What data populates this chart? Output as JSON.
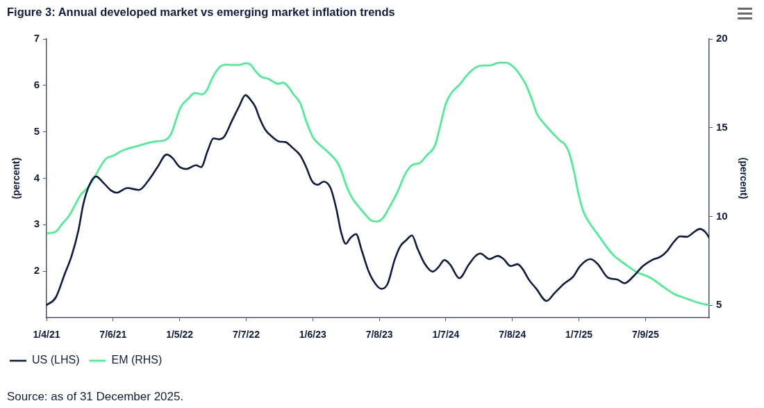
{
  "chart_data": {
    "type": "line",
    "title": "Figure 3: Annual developed market vs emerging market inflation trends",
    "ylabel": "(percent)",
    "y2label": "(percent)",
    "annotations": [
      "Source: as of 31 December 2025."
    ],
    "legend": "bottom left",
    "xlim": [
      "2021-01-04",
      "2025-12-31"
    ],
    "xticks": [
      {
        "value": "2021-01-04",
        "label": "1/4/21"
      },
      {
        "value": "2021-07-06",
        "label": "7/6/21"
      },
      {
        "value": "2022-01-05",
        "label": "1/5/22"
      },
      {
        "value": "2022-07-07",
        "label": "7/7/22"
      },
      {
        "value": "2023-01-06",
        "label": "1/6/23"
      },
      {
        "value": "2023-07-08",
        "label": "7/8/23"
      },
      {
        "value": "2024-01-07",
        "label": "1/7/24"
      },
      {
        "value": "2024-07-08",
        "label": "7/8/24"
      },
      {
        "value": "2025-01-07",
        "label": "1/7/25"
      },
      {
        "value": "2025-07-09",
        "label": "7/9/25"
      }
    ],
    "ylim": [
      1,
      7
    ],
    "yticks": [
      2,
      3,
      4,
      5,
      6,
      7
    ],
    "y2lim": [
      4.3,
      20
    ],
    "y2ticks": [
      5,
      10,
      15,
      20
    ],
    "series": [
      {
        "name": "US (LHS)",
        "color": "#0d1b3e",
        "x": [
          "2021-01-04",
          "2021-01-29",
          "2021-02-23",
          "2021-03-14",
          "2021-04-02",
          "2021-04-15",
          "2021-05-01",
          "2021-05-20",
          "2021-06-11",
          "2021-06-30",
          "2021-07-16",
          "2021-08-14",
          "2021-09-15",
          "2021-10-10",
          "2021-11-05",
          "2021-11-30",
          "2021-12-16",
          "2022-01-04",
          "2022-01-24",
          "2022-02-19",
          "2022-03-05",
          "2022-03-23",
          "2022-04-08",
          "2022-04-24",
          "2022-05-07",
          "2022-05-29",
          "2022-06-17",
          "2022-07-05",
          "2022-07-19",
          "2022-08-01",
          "2022-08-13",
          "2022-08-29",
          "2022-09-14",
          "2022-10-07",
          "2022-10-23",
          "2022-11-11",
          "2022-12-03",
          "2022-12-19",
          "2023-01-04",
          "2023-01-20",
          "2023-02-05",
          "2023-02-24",
          "2023-03-12",
          "2023-03-25",
          "2023-04-07",
          "2023-04-19",
          "2023-05-05",
          "2023-05-21",
          "2023-06-09",
          "2023-06-29",
          "2023-07-14",
          "2023-07-31",
          "2023-08-19",
          "2023-09-04",
          "2023-09-19",
          "2023-10-06",
          "2023-10-21",
          "2023-11-10",
          "2023-12-02",
          "2023-12-18",
          "2024-01-03",
          "2024-01-19",
          "2024-02-13",
          "2024-03-10",
          "2024-03-29",
          "2024-04-11",
          "2024-05-06",
          "2024-05-29",
          "2024-06-14",
          "2024-07-03",
          "2024-07-22",
          "2024-08-04",
          "2024-08-23",
          "2024-09-11",
          "2024-10-10",
          "2024-11-01",
          "2024-11-27",
          "2024-12-22",
          "2025-01-10",
          "2025-02-08",
          "2025-02-27",
          "2025-03-28",
          "2025-04-23",
          "2025-05-12",
          "2025-06-06",
          "2025-07-02",
          "2025-07-27",
          "2025-08-19",
          "2025-09-07",
          "2025-09-26",
          "2025-10-12",
          "2025-10-31",
          "2025-11-19",
          "2025-12-05",
          "2025-12-21",
          "2025-12-31"
        ],
        "values": [
          1.27,
          1.43,
          1.94,
          2.33,
          2.89,
          3.44,
          3.84,
          4.04,
          3.89,
          3.74,
          3.69,
          3.79,
          3.75,
          3.94,
          4.24,
          4.51,
          4.44,
          4.25,
          4.2,
          4.28,
          4.24,
          4.59,
          4.86,
          4.84,
          4.89,
          5.24,
          5.54,
          5.79,
          5.69,
          5.54,
          5.29,
          5.04,
          4.91,
          4.79,
          4.78,
          4.66,
          4.49,
          4.24,
          3.94,
          3.86,
          3.93,
          3.79,
          3.34,
          2.84,
          2.59,
          2.71,
          2.8,
          2.44,
          1.99,
          1.71,
          1.62,
          1.73,
          2.24,
          2.54,
          2.66,
          2.77,
          2.49,
          2.16,
          1.99,
          2.09,
          2.24,
          2.14,
          1.85,
          2.14,
          2.33,
          2.38,
          2.26,
          2.33,
          2.26,
          2.11,
          2.15,
          2.06,
          1.81,
          1.63,
          1.36,
          1.53,
          1.73,
          1.88,
          2.11,
          2.26,
          2.16,
          1.86,
          1.82,
          1.74,
          1.89,
          2.11,
          2.24,
          2.31,
          2.44,
          2.64,
          2.75,
          2.74,
          2.84,
          2.91,
          2.84,
          2.72
        ]
      },
      {
        "name": "EM (RHS)",
        "color": "#3ff28e",
        "axis": "y2",
        "x": [
          "2021-01-04",
          "2021-01-29",
          "2021-02-16",
          "2021-03-07",
          "2021-03-23",
          "2021-04-08",
          "2021-04-27",
          "2021-05-16",
          "2021-06-01",
          "2021-06-17",
          "2021-07-06",
          "2021-08-02",
          "2021-09-15",
          "2021-10-30",
          "2021-11-25",
          "2021-12-14",
          "2021-12-27",
          "2022-01-08",
          "2022-01-28",
          "2022-02-16",
          "2022-03-07",
          "2022-03-20",
          "2022-04-05",
          "2022-04-24",
          "2022-05-13",
          "2022-05-29",
          "2022-06-17",
          "2022-07-06",
          "2022-07-19",
          "2022-08-01",
          "2022-08-17",
          "2022-09-05",
          "2022-10-04",
          "2022-10-16",
          "2022-10-29",
          "2022-11-14",
          "2022-12-03",
          "2022-12-19",
          "2023-01-07",
          "2023-01-23",
          "2023-02-15",
          "2023-03-12",
          "2023-03-25",
          "2023-04-07",
          "2023-04-23",
          "2023-05-12",
          "2023-05-31",
          "2023-06-16",
          "2023-07-02",
          "2023-07-18",
          "2023-08-06",
          "2023-08-28",
          "2023-09-16",
          "2023-10-06",
          "2023-10-28",
          "2023-11-16",
          "2023-12-08",
          "2023-12-21",
          "2024-01-06",
          "2024-01-22",
          "2024-02-13",
          "2024-03-07",
          "2024-03-29",
          "2024-04-17",
          "2024-05-06",
          "2024-06-01",
          "2024-06-20",
          "2024-07-09",
          "2024-07-28",
          "2024-08-13",
          "2024-08-29",
          "2024-09-14",
          "2024-10-03",
          "2024-10-26",
          "2024-11-17",
          "2024-11-30",
          "2024-12-12",
          "2024-12-25",
          "2025-01-07",
          "2025-01-20",
          "2025-02-05",
          "2025-03-02",
          "2025-03-25",
          "2025-04-13",
          "2025-05-12",
          "2025-06-12",
          "2025-07-24",
          "2025-08-28",
          "2025-09-26",
          "2025-10-31",
          "2025-12-02",
          "2025-12-31"
        ],
        "values": [
          9.05,
          9.14,
          9.58,
          10.04,
          10.63,
          11.22,
          11.62,
          12.21,
          12.8,
          13.26,
          13.42,
          13.72,
          13.99,
          14.22,
          14.29,
          14.71,
          15.5,
          16.16,
          16.62,
          16.95,
          16.88,
          17.08,
          17.8,
          18.39,
          18.55,
          18.53,
          18.53,
          18.63,
          18.55,
          18.2,
          17.87,
          17.76,
          17.47,
          17.54,
          17.34,
          16.88,
          16.36,
          15.37,
          14.45,
          14.08,
          13.66,
          13.13,
          12.61,
          11.82,
          11.09,
          10.56,
          10.1,
          9.77,
          9.71,
          9.91,
          10.56,
          11.42,
          12.34,
          12.89,
          13.02,
          13.46,
          13.99,
          14.97,
          16.29,
          16.95,
          17.41,
          18.0,
          18.39,
          18.5,
          18.5,
          18.66,
          18.66,
          18.46,
          18.0,
          17.47,
          16.68,
          15.76,
          15.24,
          14.71,
          14.25,
          14.05,
          13.53,
          12.47,
          11.16,
          10.24,
          9.64,
          8.92,
          8.26,
          7.8,
          7.34,
          6.9,
          6.53,
          6.02,
          5.63,
          5.37,
          5.13,
          5.0
        ]
      }
    ]
  }
}
